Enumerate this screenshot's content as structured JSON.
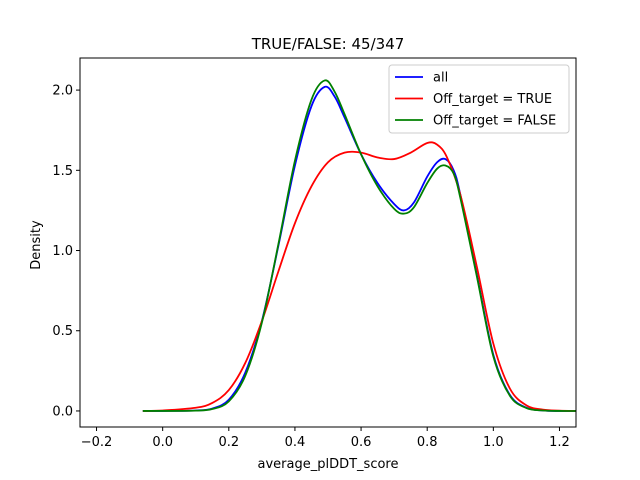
{
  "chart_data": {
    "type": "line",
    "title": "TRUE/FALSE: 45/347",
    "xlabel": "average_plDDT_score",
    "ylabel": "Density",
    "xlim": [
      -0.25,
      1.25
    ],
    "ylim": [
      -0.1,
      2.2
    ],
    "xticks": [
      -0.2,
      0.0,
      0.2,
      0.4,
      0.6,
      0.8,
      1.0,
      1.2
    ],
    "xtick_labels": [
      "−0.2",
      "0.0",
      "0.2",
      "0.4",
      "0.6",
      "0.8",
      "1.0",
      "1.2"
    ],
    "yticks": [
      0.0,
      0.5,
      1.0,
      1.5,
      2.0
    ],
    "ytick_labels": [
      "0.0",
      "0.5",
      "1.0",
      "1.5",
      "2.0"
    ],
    "grid": false,
    "legend": "top-right",
    "series": [
      {
        "name": "all",
        "color": "#0000ff",
        "x": [
          -0.06,
          0.0,
          0.1,
          0.15,
          0.2,
          0.25,
          0.3,
          0.35,
          0.4,
          0.45,
          0.49,
          0.52,
          0.55,
          0.6,
          0.65,
          0.7,
          0.73,
          0.76,
          0.8,
          0.83,
          0.855,
          0.88,
          0.9,
          0.95,
          1.0,
          1.05,
          1.1,
          1.15,
          1.2,
          1.25
        ],
        "y": [
          0.0,
          0.0,
          0.003,
          0.015,
          0.07,
          0.24,
          0.56,
          1.03,
          1.53,
          1.9,
          2.02,
          1.96,
          1.83,
          1.6,
          1.42,
          1.29,
          1.25,
          1.3,
          1.46,
          1.55,
          1.57,
          1.5,
          1.35,
          0.85,
          0.35,
          0.1,
          0.02,
          0.003,
          0.0,
          0.0
        ]
      },
      {
        "name": "Off_target = TRUE",
        "color": "#ff0000",
        "x": [
          -0.06,
          0.0,
          0.1,
          0.15,
          0.2,
          0.25,
          0.3,
          0.35,
          0.4,
          0.45,
          0.5,
          0.55,
          0.6,
          0.65,
          0.7,
          0.75,
          0.8,
          0.83,
          0.86,
          0.9,
          0.95,
          1.0,
          1.05,
          1.1,
          1.15,
          1.2,
          1.25
        ],
        "y": [
          0.0,
          0.003,
          0.02,
          0.05,
          0.13,
          0.3,
          0.56,
          0.87,
          1.17,
          1.4,
          1.55,
          1.61,
          1.61,
          1.58,
          1.57,
          1.61,
          1.67,
          1.66,
          1.58,
          1.35,
          0.9,
          0.42,
          0.14,
          0.035,
          0.008,
          0.002,
          0.0
        ]
      },
      {
        "name": "Off_target = FALSE",
        "color": "#008000",
        "x": [
          -0.06,
          0.0,
          0.1,
          0.15,
          0.2,
          0.25,
          0.3,
          0.35,
          0.4,
          0.45,
          0.49,
          0.52,
          0.55,
          0.6,
          0.65,
          0.7,
          0.73,
          0.76,
          0.8,
          0.83,
          0.855,
          0.88,
          0.9,
          0.95,
          1.0,
          1.05,
          1.1,
          1.15,
          1.2,
          1.25
        ],
        "y": [
          0.0,
          0.0,
          0.002,
          0.012,
          0.06,
          0.22,
          0.55,
          1.04,
          1.56,
          1.94,
          2.06,
          1.99,
          1.85,
          1.6,
          1.4,
          1.26,
          1.23,
          1.27,
          1.42,
          1.51,
          1.53,
          1.48,
          1.33,
          0.84,
          0.34,
          0.095,
          0.018,
          0.003,
          0.0,
          0.0
        ]
      }
    ]
  }
}
